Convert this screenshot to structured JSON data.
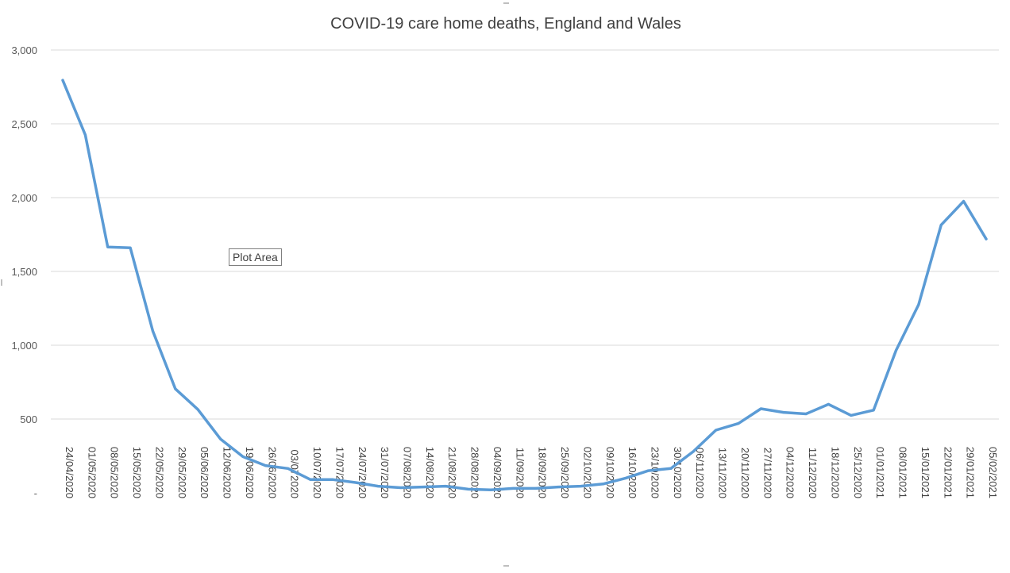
{
  "chart_data": {
    "type": "line",
    "title": "COVID-19 care home deaths, England and Wales",
    "xlabel": "",
    "ylabel": "",
    "ylim": [
      0,
      3000
    ],
    "yticks": [
      "-",
      "500",
      "1,000",
      "1,500",
      "2,000",
      "2,500",
      "3,000"
    ],
    "grid": true,
    "legend": "none",
    "line_color": "#5b9bd5",
    "categories": [
      "24/04/2020",
      "01/05/2020",
      "08/05/2020",
      "15/05/2020",
      "22/05/2020",
      "29/05/2020",
      "05/06/2020",
      "12/06/2020",
      "19/06/2020",
      "26/06/2020",
      "03/072020",
      "10/07/2020",
      "17/07/2020",
      "24/07/2020",
      "31/07/2020",
      "07/08/2020",
      "14/08/2020",
      "21/08/2020",
      "28/08/2020",
      "04/09/2020",
      "11/09/2020",
      "18/09/2020",
      "25/09/2020",
      "02/10/2020",
      "09/10/2020",
      "16/10/2020",
      "23/10/2020",
      "30/10/2020",
      "06/11/2020",
      "13/11/2020",
      "20/11/2020",
      "27/11/2020",
      "04/12/2020",
      "11/12/2020",
      "18/12/2020",
      "25/12/2020",
      "01/01/2021",
      "08/01/2021",
      "15/01/2021",
      "22/01/2021",
      "29/01/2021",
      "05/02/2021"
    ],
    "series": [
      {
        "values": [
          2795,
          2425,
          1665,
          1660,
          1095,
          705,
          565,
          365,
          245,
          185,
          165,
          90,
          90,
          70,
          45,
          35,
          40,
          45,
          25,
          20,
          30,
          30,
          40,
          45,
          60,
          100,
          150,
          165,
          280,
          425,
          470,
          570,
          545,
          535,
          600,
          525,
          560,
          965,
          1275,
          1815,
          1975,
          1720
        ]
      }
    ]
  },
  "overlay": {
    "plot_area_label": "Plot Area"
  }
}
